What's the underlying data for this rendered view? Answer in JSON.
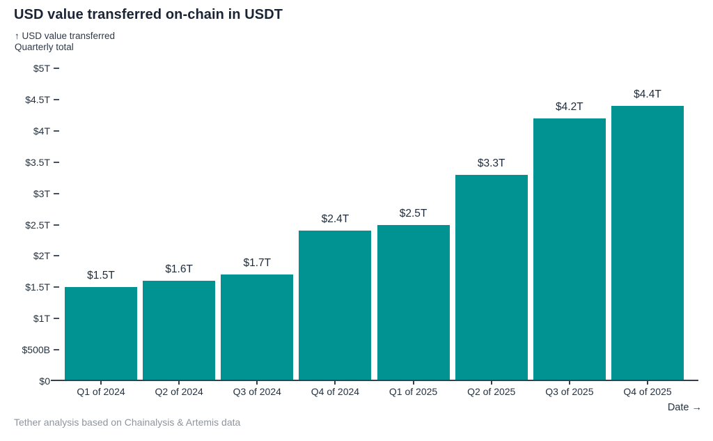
{
  "chart_data": {
    "type": "bar",
    "title": "USD value transferred on-chain in USDT",
    "ylabel_line1": "↑ USD value transferred",
    "ylabel_line2": "Quarterly total",
    "xlabel": "Date →",
    "footer": "Tether analysis based on Chainalysis & Artemis data",
    "categories": [
      "Q1 of 2024",
      "Q2 of 2024",
      "Q3 of 2024",
      "Q4 of 2024",
      "Q1 of 2025",
      "Q2 of 2025",
      "Q3 of 2025",
      "Q4 of 2025"
    ],
    "values": [
      1.5,
      1.6,
      1.7,
      2.4,
      2.5,
      3.3,
      4.2,
      4.4
    ],
    "bar_labels": [
      "$1.5T",
      "$1.6T",
      "$1.7T",
      "$2.4T",
      "$2.5T",
      "$3.3T",
      "$4.2T",
      "$4.4T"
    ],
    "y_ticks": [
      {
        "v": 0,
        "label": "$0"
      },
      {
        "v": 0.5,
        "label": "$500B"
      },
      {
        "v": 1,
        "label": "$1T"
      },
      {
        "v": 1.5,
        "label": "$1.5T"
      },
      {
        "v": 2,
        "label": "$2T"
      },
      {
        "v": 2.5,
        "label": "$2.5T"
      },
      {
        "v": 3,
        "label": "$3T"
      },
      {
        "v": 3.5,
        "label": "$3.5T"
      },
      {
        "v": 4,
        "label": "$4T"
      },
      {
        "v": 4.5,
        "label": "$4.5T"
      },
      {
        "v": 5,
        "label": "$5T"
      }
    ],
    "ylim": [
      0,
      5
    ],
    "grid": false,
    "legend": null,
    "colors": {
      "bar": "#009392",
      "title_text": "#1a2433",
      "axis_text": "#243240",
      "axis_line": "#333f4d",
      "footer_text": "#8e959c"
    }
  }
}
